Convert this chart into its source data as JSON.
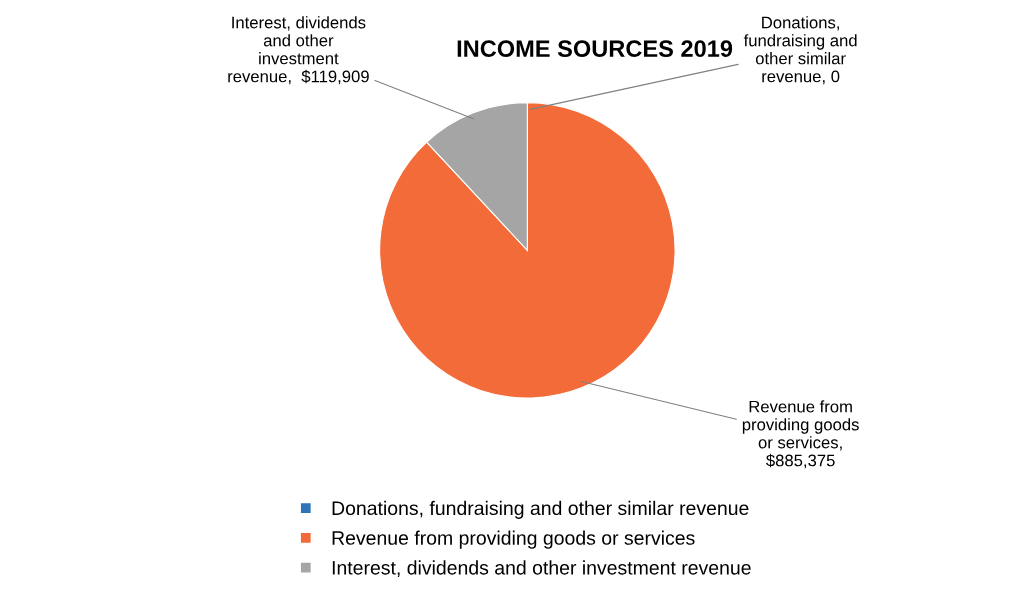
{
  "chart_data": {
    "type": "pie",
    "title": "INCOME SOURCES 2019",
    "categories": [
      "Donations, fundraising and other similar revenue",
      "Revenue from providing goods or services",
      "Interest, dividends and other investment revenue"
    ],
    "values": [
      0,
      885375,
      119909
    ],
    "colors": [
      "#2e75b6",
      "#f26b38",
      "#a5a5a5"
    ],
    "value_labels": [
      "Donations,\nfundraising and\nother similar\nrevenue, 0",
      "Revenue from\nproviding goods\nor services,\n$885,375",
      "Interest, dividends\nand other\ninvestment\nrevenue,  $119,909"
    ],
    "legend": "bottom"
  }
}
